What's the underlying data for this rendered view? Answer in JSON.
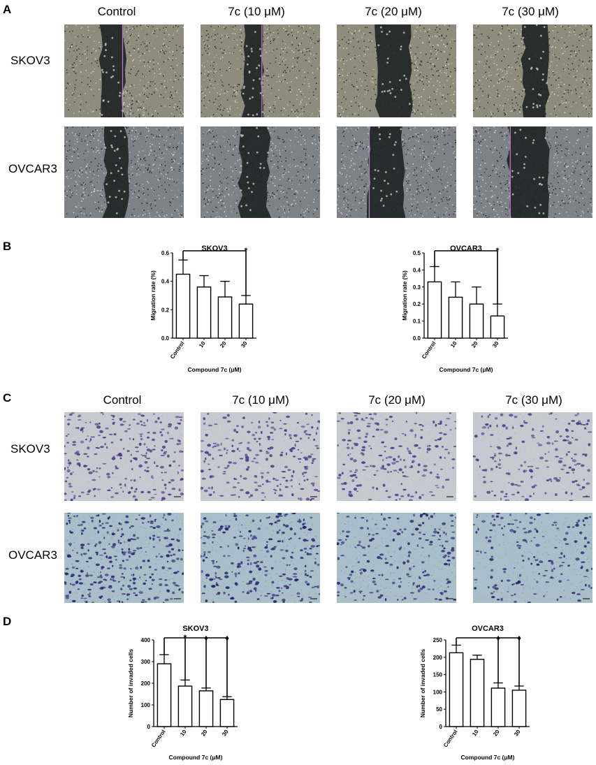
{
  "panels": {
    "a": {
      "letter": "A"
    },
    "b": {
      "letter": "B"
    },
    "c": {
      "letter": "C"
    },
    "d": {
      "letter": "D"
    }
  },
  "columns": [
    "Control",
    "7c (10 μM)",
    "7c (20 μM)",
    "7c (30 μM)"
  ],
  "rows": [
    "SKOV3",
    "OVCAR3"
  ],
  "colors": {
    "wound_bg": "#8c8c80",
    "wound_gap": "#1e2224",
    "wound_line": "#c080d0",
    "skov3_invasion_bg": "#c6c9cf",
    "skov3_invasion_cell": "#4a3a86",
    "ovcar3_invasion_bg": "#a9bfca",
    "ovcar3_invasion_cell": "#2a2470"
  },
  "chart_data": [
    {
      "type": "bar",
      "title": "SKOV3",
      "xlabel": "Compound 7c (μM)",
      "ylabel": "Migration rate (%)",
      "categories": [
        "Control",
        "10",
        "20",
        "30"
      ],
      "values": [
        0.45,
        0.36,
        0.29,
        0.24
      ],
      "errors": [
        0.1,
        0.08,
        0.11,
        0.06
      ],
      "ylim": [
        0,
        0.6
      ],
      "yticks": [
        "0.0",
        "0.2",
        "0.4",
        "0.6"
      ],
      "significance": [
        {
          "from": 0,
          "to": 3,
          "mark": "*"
        }
      ]
    },
    {
      "type": "bar",
      "title": "OVCAR3",
      "xlabel": "Compound 7c (μM)",
      "ylabel": "Migration rate (%)",
      "categories": [
        "Control",
        "10",
        "20",
        "30"
      ],
      "values": [
        0.33,
        0.24,
        0.2,
        0.13
      ],
      "errors": [
        0.09,
        0.09,
        0.1,
        0.07
      ],
      "ylim": [
        0,
        0.5
      ],
      "yticks": [
        "0.0",
        "0.1",
        "0.2",
        "0.3",
        "0.4",
        "0.5"
      ],
      "significance": [
        {
          "from": 0,
          "to": 3,
          "mark": "*"
        }
      ]
    },
    {
      "type": "bar",
      "title": "SKOV3",
      "xlabel": "Compound 7c (μM)",
      "ylabel": "Number of invaded cells",
      "categories": [
        "Control",
        "10",
        "20",
        "30"
      ],
      "values": [
        290,
        187,
        165,
        125
      ],
      "errors": [
        42,
        28,
        13,
        13
      ],
      "ylim": [
        0,
        400
      ],
      "yticks": [
        "0",
        "100",
        "200",
        "300",
        "400"
      ],
      "significance": [
        {
          "from": 0,
          "to": 1,
          "mark": "*"
        },
        {
          "from": 0,
          "to": 2,
          "mark": "♦"
        },
        {
          "from": 0,
          "to": 3,
          "mark": "♦"
        }
      ]
    },
    {
      "type": "bar",
      "title": "OVCAR3",
      "xlabel": "Compound 7c (μM)",
      "ylabel": "Number of invaded cells",
      "categories": [
        "Control",
        "10",
        "20",
        "30"
      ],
      "values": [
        213,
        194,
        111,
        105
      ],
      "errors": [
        22,
        12,
        15,
        12
      ],
      "ylim": [
        0,
        250
      ],
      "yticks": [
        "0",
        "50",
        "100",
        "150",
        "200",
        "250"
      ],
      "significance": [
        {
          "from": 0,
          "to": 2,
          "mark": "♦"
        },
        {
          "from": 0,
          "to": 3,
          "mark": "♦"
        }
      ]
    }
  ]
}
